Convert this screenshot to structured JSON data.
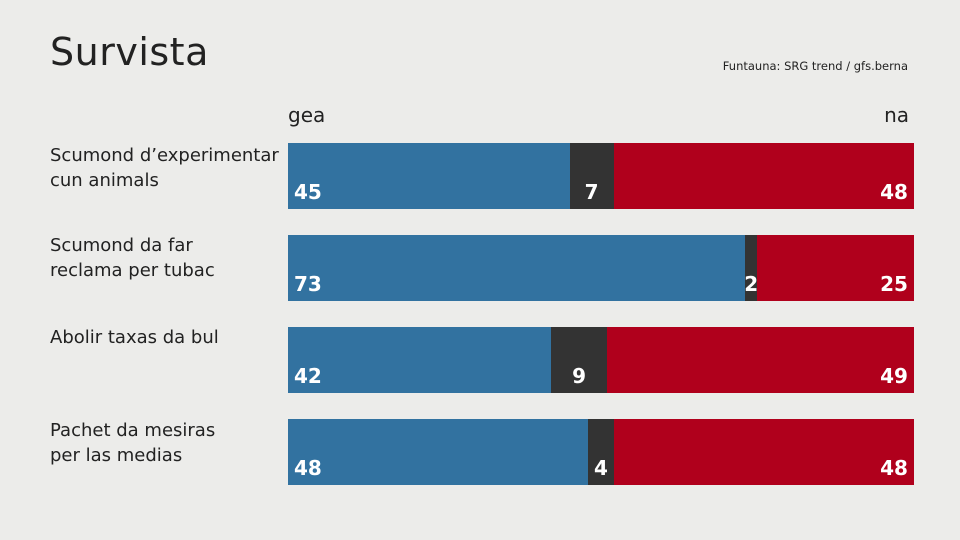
{
  "header": {
    "title": "Survista",
    "source": "Funtauna: SRG trend / gfs.berna"
  },
  "chart_data": {
    "type": "bar",
    "orientation": "horizontal-stacked",
    "title": "Survista",
    "column_labels": {
      "left": "gea",
      "right": "na"
    },
    "categories": [
      [
        "Scumond d’experimentar",
        "cun animals"
      ],
      [
        "Scumond da far",
        "reclama per tubac"
      ],
      [
        "Abolir taxas da bul"
      ],
      [
        "Pachet da mesiras",
        "per las medias"
      ]
    ],
    "series": [
      {
        "name": "gea",
        "color": "#3272a0",
        "values": [
          45,
          73,
          42,
          48
        ]
      },
      {
        "name": "",
        "color": "#333333",
        "values": [
          7,
          2,
          9,
          4
        ]
      },
      {
        "name": "na",
        "color": "#b0001c",
        "values": [
          48,
          25,
          49,
          48
        ]
      }
    ],
    "xlim": [
      0,
      100
    ],
    "grid": false,
    "legend": "none"
  }
}
